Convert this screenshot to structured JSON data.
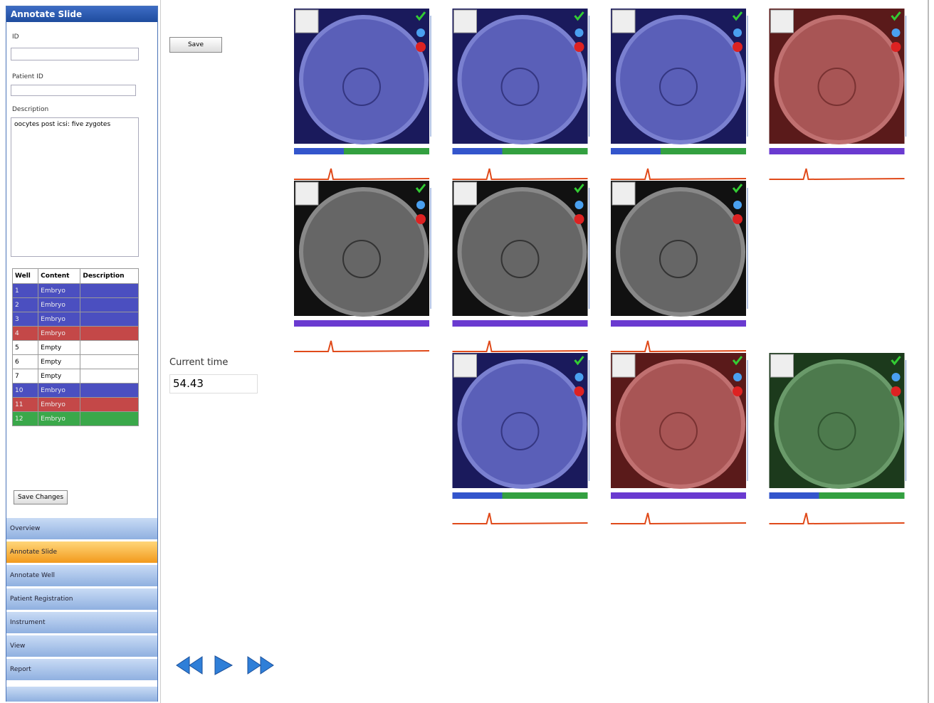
{
  "panel": {
    "title": "Annotate Slide",
    "id_label": "ID",
    "patient_label": "Patient ID",
    "description_label": "Description",
    "description": "oocytes post icsi: five zygotes",
    "table": {
      "headers": [
        "Well",
        "Content",
        "Description"
      ],
      "rows": [
        [
          "1",
          "Embryo"
        ],
        [
          "2",
          "Embryo"
        ],
        [
          "3",
          "Embryo"
        ],
        [
          "4",
          "Embryo"
        ],
        [
          "5",
          "Empty"
        ],
        [
          "6",
          "Empty"
        ],
        [
          "7",
          "Empty"
        ],
        [
          "10",
          "Embryo"
        ],
        [
          "11",
          "Embryo"
        ],
        [
          "12",
          "Embryo"
        ]
      ]
    },
    "save_changes": "Save Changes"
  },
  "nav": [
    "Overview",
    "Annotate Slide",
    "Annotate Well",
    "Patient Registration",
    "Instrument",
    "View",
    "Report"
  ],
  "save": "Save",
  "current_time": {
    "label": "Current time",
    "value": "54.43"
  }
}
